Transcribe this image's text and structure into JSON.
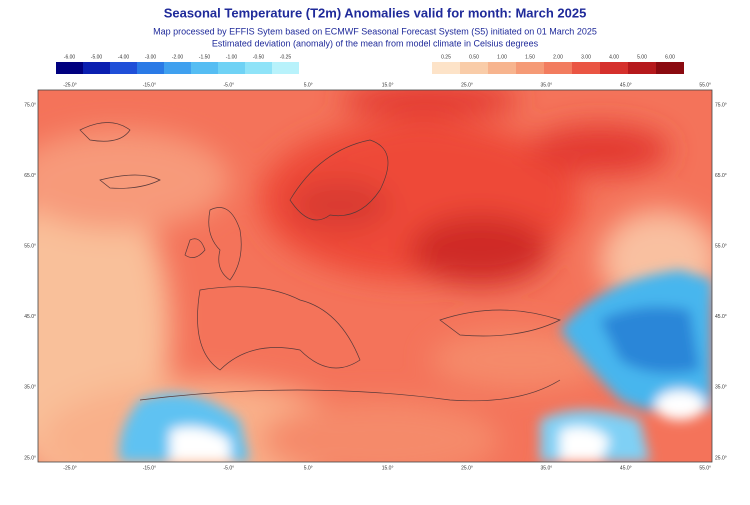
{
  "header": {
    "title": "Seasonal Temperature (T2m) Anomalies valid for month: March 2025",
    "subtitle": "Map processed by EFFIS Sytem based on ECMWF Seasonal Forecast System (S5) initiated on 01 March 2025",
    "description": "Estimated deviation (anomaly) of the mean from model climate in Celsius degrees"
  },
  "legend": {
    "negative": [
      "-6.00",
      "-5.00",
      "-4.00",
      "-3.00",
      "-2.00",
      "-1.50",
      "-1.00",
      "-0.50",
      "-0.25"
    ],
    "positive": [
      "0.25",
      "0.50",
      "1.00",
      "1.50",
      "2.00",
      "3.00",
      "4.00",
      "5.00",
      "6.00"
    ]
  },
  "map": {
    "lon_labels": [
      "-25.0°",
      "-15.0°",
      "-5.0°",
      "5.0°",
      "15.0°",
      "25.0°",
      "35.0°",
      "45.0°",
      "55.0°"
    ],
    "lat_labels": [
      "75.0°",
      "65.0°",
      "55.0°",
      "45.0°",
      "35.0°",
      "25.0°"
    ]
  }
}
